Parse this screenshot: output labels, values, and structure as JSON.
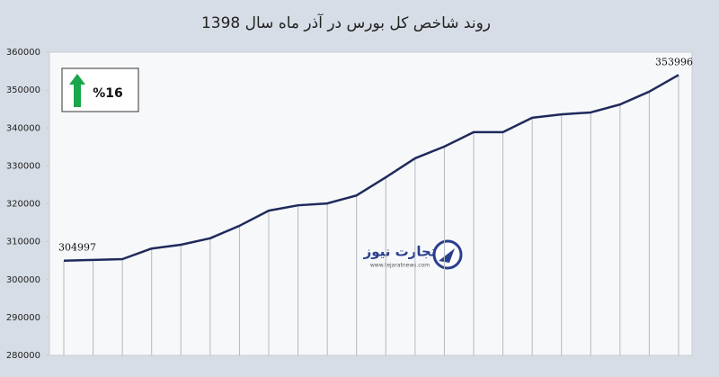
{
  "chart_data": {
    "type": "line",
    "title": "روند شاخص کل بورس در آذر ماه سال 1398",
    "categories": [
      null,
      null,
      null,
      null,
      null,
      null,
      null,
      null,
      null,
      null,
      null,
      null,
      null,
      null,
      null,
      null,
      null,
      null,
      null,
      null,
      null,
      null
    ],
    "series": [
      {
        "color": "#1f2a5c",
        "values": [
          304997,
          305200,
          305400,
          308200,
          309200,
          310900,
          314200,
          318200,
          319600,
          320100,
          322200,
          327000,
          332000,
          335100,
          338900,
          338900,
          342700,
          343600,
          344100,
          346200,
          349600,
          353996
        ]
      }
    ],
    "labeled_points": [
      0,
      21
    ],
    "ylim": [
      280000,
      360000
    ],
    "yticks": [
      280000,
      290000,
      300000,
      310000,
      320000,
      330000,
      340000,
      350000,
      360000
    ],
    "drop_lines": true,
    "change_box": {
      "text": "%16",
      "arrow_color": "#1aa64b"
    },
    "watermark": {
      "name": "تجارت نیوز",
      "url": "www.tejaratnews.com"
    }
  }
}
